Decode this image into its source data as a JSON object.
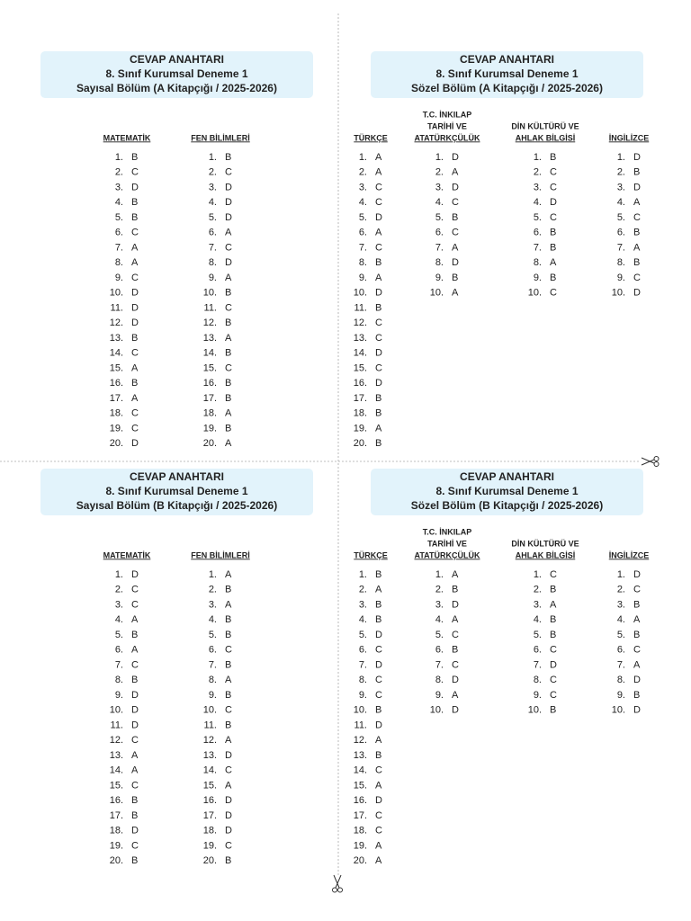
{
  "sections": [
    {
      "header": [
        "CEVAP ANAHTARI",
        "8. Sınıf Kurumsal Deneme 1",
        "Sayısal Bölüm (A Kitapçığı / 2025-2026)"
      ],
      "columns": [
        {
          "header": [
            "MATEMATİK"
          ],
          "items": [
            [
              "1.",
              "B"
            ],
            [
              "2.",
              "C"
            ],
            [
              "3.",
              "D"
            ],
            [
              "4.",
              "B"
            ],
            [
              "5.",
              "B"
            ],
            [
              "6.",
              "C"
            ],
            [
              "7.",
              "A"
            ],
            [
              "8.",
              "A"
            ],
            [
              "9.",
              "C"
            ],
            [
              "10.",
              "D"
            ],
            [
              "11.",
              "D"
            ],
            [
              "12.",
              "D"
            ],
            [
              "13.",
              "B"
            ],
            [
              "14.",
              "C"
            ],
            [
              "15.",
              "A"
            ],
            [
              "16.",
              "B"
            ],
            [
              "17.",
              "A"
            ],
            [
              "18.",
              "C"
            ],
            [
              "19.",
              "C"
            ],
            [
              "20.",
              "D"
            ]
          ]
        },
        {
          "header": [
            "FEN BİLİMLERİ"
          ],
          "items": [
            [
              "1.",
              "B"
            ],
            [
              "2.",
              "C"
            ],
            [
              "3.",
              "D"
            ],
            [
              "4.",
              "D"
            ],
            [
              "5.",
              "D"
            ],
            [
              "6.",
              "A"
            ],
            [
              "7.",
              "C"
            ],
            [
              "8.",
              "D"
            ],
            [
              "9.",
              "A"
            ],
            [
              "10.",
              "B"
            ],
            [
              "11.",
              "C"
            ],
            [
              "12.",
              "B"
            ],
            [
              "13.",
              "A"
            ],
            [
              "14.",
              "B"
            ],
            [
              "15.",
              "C"
            ],
            [
              "16.",
              "B"
            ],
            [
              "17.",
              "B"
            ],
            [
              "18.",
              "A"
            ],
            [
              "19.",
              "B"
            ],
            [
              "20.",
              "A"
            ]
          ]
        }
      ]
    },
    {
      "header": [
        "CEVAP ANAHTARI",
        "8. Sınıf Kurumsal Deneme 1",
        "Sözel Bölüm (A Kitapçığı / 2025-2026)"
      ],
      "columns": [
        {
          "header": [
            "TÜRKÇE"
          ],
          "items": [
            [
              "1.",
              "A"
            ],
            [
              "2.",
              "A"
            ],
            [
              "3.",
              "C"
            ],
            [
              "4.",
              "C"
            ],
            [
              "5.",
              "D"
            ],
            [
              "6.",
              "A"
            ],
            [
              "7.",
              "C"
            ],
            [
              "8.",
              "B"
            ],
            [
              "9.",
              "A"
            ],
            [
              "10.",
              "D"
            ],
            [
              "11.",
              "B"
            ],
            [
              "12.",
              "C"
            ],
            [
              "13.",
              "C"
            ],
            [
              "14.",
              "D"
            ],
            [
              "15.",
              "C"
            ],
            [
              "16.",
              "D"
            ],
            [
              "17.",
              "B"
            ],
            [
              "18.",
              "B"
            ],
            [
              "19.",
              "A"
            ],
            [
              "20.",
              "B"
            ]
          ]
        },
        {
          "header": [
            "T.C. İNKILAP",
            "TARİHİ VE",
            "ATATÜRKÇÜLÜK"
          ],
          "items": [
            [
              "1.",
              "D"
            ],
            [
              "2.",
              "A"
            ],
            [
              "3.",
              "D"
            ],
            [
              "4.",
              "C"
            ],
            [
              "5.",
              "B"
            ],
            [
              "6.",
              "C"
            ],
            [
              "7.",
              "A"
            ],
            [
              "8.",
              "D"
            ],
            [
              "9.",
              "B"
            ],
            [
              "10.",
              "A"
            ]
          ]
        },
        {
          "header": [
            "DİN KÜLTÜRÜ VE",
            "AHLAK BİLGİSİ"
          ],
          "items": [
            [
              "1.",
              "B"
            ],
            [
              "2.",
              "C"
            ],
            [
              "3.",
              "C"
            ],
            [
              "4.",
              "D"
            ],
            [
              "5.",
              "C"
            ],
            [
              "6.",
              "B"
            ],
            [
              "7.",
              "B"
            ],
            [
              "8.",
              "A"
            ],
            [
              "9.",
              "B"
            ],
            [
              "10.",
              "C"
            ]
          ]
        },
        {
          "header": [
            "İNGİLİZCE"
          ],
          "items": [
            [
              "1.",
              "D"
            ],
            [
              "2.",
              "B"
            ],
            [
              "3.",
              "D"
            ],
            [
              "4.",
              "A"
            ],
            [
              "5.",
              "C"
            ],
            [
              "6.",
              "B"
            ],
            [
              "7.",
              "A"
            ],
            [
              "8.",
              "B"
            ],
            [
              "9.",
              "C"
            ],
            [
              "10.",
              "D"
            ]
          ]
        }
      ]
    },
    {
      "header": [
        "CEVAP ANAHTARI",
        "8. Sınıf Kurumsal Deneme 1",
        "Sayısal Bölüm (B Kitapçığı / 2025-2026)"
      ],
      "columns": [
        {
          "header": [
            "MATEMATİK"
          ],
          "items": [
            [
              "1.",
              "D"
            ],
            [
              "2.",
              "C"
            ],
            [
              "3.",
              "C"
            ],
            [
              "4.",
              "A"
            ],
            [
              "5.",
              "B"
            ],
            [
              "6.",
              "A"
            ],
            [
              "7.",
              "C"
            ],
            [
              "8.",
              "B"
            ],
            [
              "9.",
              "D"
            ],
            [
              "10.",
              "D"
            ],
            [
              "11.",
              "D"
            ],
            [
              "12.",
              "C"
            ],
            [
              "13.",
              "A"
            ],
            [
              "14.",
              "A"
            ],
            [
              "15.",
              "C"
            ],
            [
              "16.",
              "B"
            ],
            [
              "17.",
              "B"
            ],
            [
              "18.",
              "D"
            ],
            [
              "19.",
              "C"
            ],
            [
              "20.",
              "B"
            ]
          ]
        },
        {
          "header": [
            "FEN BİLİMLERİ"
          ],
          "items": [
            [
              "1.",
              "A"
            ],
            [
              "2.",
              "B"
            ],
            [
              "3.",
              "A"
            ],
            [
              "4.",
              "B"
            ],
            [
              "5.",
              "B"
            ],
            [
              "6.",
              "C"
            ],
            [
              "7.",
              "B"
            ],
            [
              "8.",
              "A"
            ],
            [
              "9.",
              "B"
            ],
            [
              "10.",
              "C"
            ],
            [
              "11.",
              "B"
            ],
            [
              "12.",
              "A"
            ],
            [
              "13.",
              "D"
            ],
            [
              "14.",
              "C"
            ],
            [
              "15.",
              "A"
            ],
            [
              "16.",
              "D"
            ],
            [
              "17.",
              "D"
            ],
            [
              "18.",
              "D"
            ],
            [
              "19.",
              "C"
            ],
            [
              "20.",
              "B"
            ]
          ]
        }
      ]
    },
    {
      "header": [
        "CEVAP ANAHTARI",
        "8. Sınıf Kurumsal Deneme 1",
        "Sözel Bölüm (B Kitapçığı / 2025-2026)"
      ],
      "columns": [
        {
          "header": [
            "TÜRKÇE"
          ],
          "items": [
            [
              "1.",
              "B"
            ],
            [
              "2.",
              "A"
            ],
            [
              "3.",
              "B"
            ],
            [
              "4.",
              "B"
            ],
            [
              "5.",
              "D"
            ],
            [
              "6.",
              "C"
            ],
            [
              "7.",
              "D"
            ],
            [
              "8.",
              "C"
            ],
            [
              "9.",
              "C"
            ],
            [
              "10.",
              "B"
            ],
            [
              "11.",
              "D"
            ],
            [
              "12.",
              "A"
            ],
            [
              "13.",
              "B"
            ],
            [
              "14.",
              "C"
            ],
            [
              "15.",
              "A"
            ],
            [
              "16.",
              "D"
            ],
            [
              "17.",
              "C"
            ],
            [
              "18.",
              "C"
            ],
            [
              "19.",
              "A"
            ],
            [
              "20.",
              "A"
            ]
          ]
        },
        {
          "header": [
            "T.C. İNKILAP",
            "TARİHİ VE",
            "ATATÜRKÇÜLÜK"
          ],
          "items": [
            [
              "1.",
              "A"
            ],
            [
              "2.",
              "B"
            ],
            [
              "3.",
              "D"
            ],
            [
              "4.",
              "A"
            ],
            [
              "5.",
              "C"
            ],
            [
              "6.",
              "B"
            ],
            [
              "7.",
              "C"
            ],
            [
              "8.",
              "D"
            ],
            [
              "9.",
              "A"
            ],
            [
              "10.",
              "D"
            ]
          ]
        },
        {
          "header": [
            "DİN KÜLTÜRÜ VE",
            "AHLAK BİLGİSİ"
          ],
          "items": [
            [
              "1.",
              "C"
            ],
            [
              "2.",
              "B"
            ],
            [
              "3.",
              "A"
            ],
            [
              "4.",
              "B"
            ],
            [
              "5.",
              "B"
            ],
            [
              "6.",
              "C"
            ],
            [
              "7.",
              "D"
            ],
            [
              "8.",
              "C"
            ],
            [
              "9.",
              "C"
            ],
            [
              "10.",
              "B"
            ]
          ]
        },
        {
          "header": [
            "İNGİLİZCE"
          ],
          "items": [
            [
              "1.",
              "D"
            ],
            [
              "2.",
              "C"
            ],
            [
              "3.",
              "B"
            ],
            [
              "4.",
              "A"
            ],
            [
              "5.",
              "B"
            ],
            [
              "6.",
              "C"
            ],
            [
              "7.",
              "A"
            ],
            [
              "8.",
              "D"
            ],
            [
              "9.",
              "B"
            ],
            [
              "10.",
              "D"
            ]
          ]
        }
      ]
    }
  ]
}
